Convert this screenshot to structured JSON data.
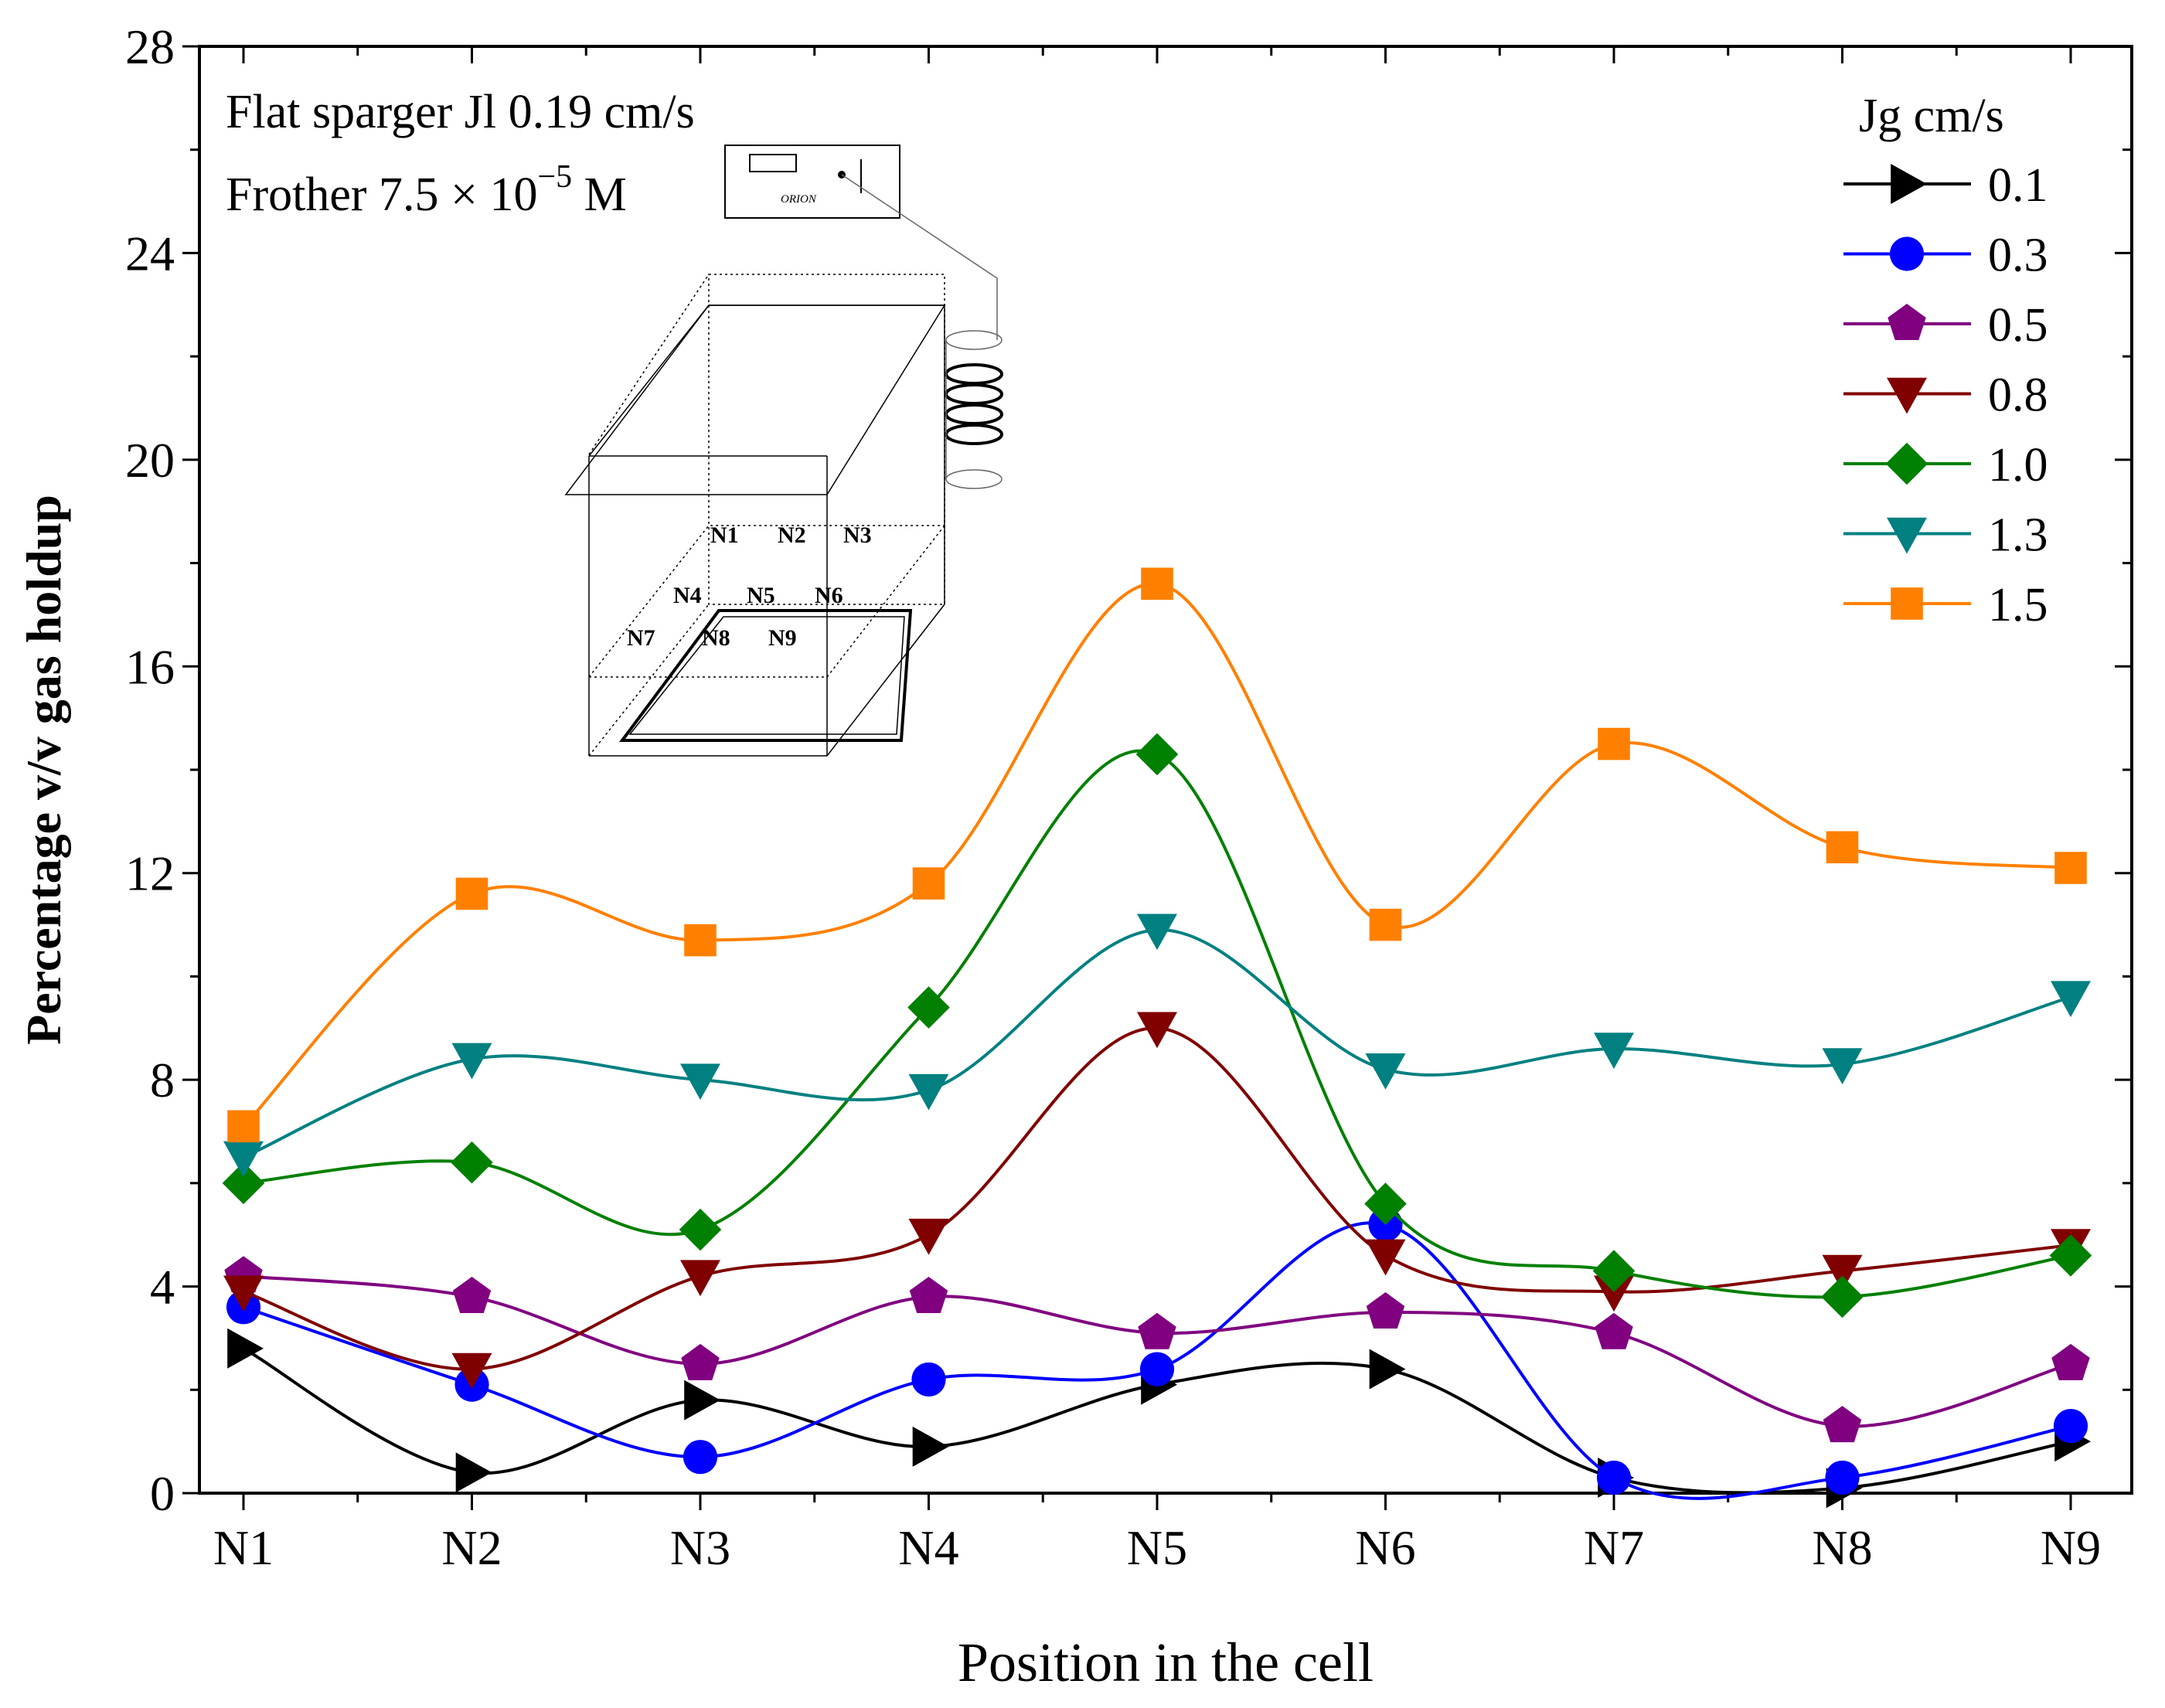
{
  "chart_data": {
    "type": "line",
    "title": "",
    "xlabel": "Position in the cell",
    "ylabel": "Percentage v/v gas holdup",
    "ylim": [
      0,
      28
    ],
    "yticks": [
      "0",
      "4",
      "8",
      "12",
      "16",
      "20",
      "24",
      "28"
    ],
    "categories": [
      "N1",
      "N2",
      "N3",
      "N4",
      "N5",
      "N6",
      "N7",
      "N8",
      "N9"
    ],
    "annotations": {
      "line1": "Flat sparger Jl 0.19 cm/s",
      "line2_prefix": "Frother 7.5 × 10",
      "line2_exp": "−5",
      "line2_suffix": " M"
    },
    "legend": {
      "title": "Jg cm/s",
      "position": "top-right"
    },
    "inset": {
      "device_label": "ORION",
      "positions": [
        "N1",
        "N2",
        "N3",
        "N4",
        "N5",
        "N6",
        "N7",
        "N8",
        "N9"
      ]
    },
    "series": [
      {
        "name": "0.1",
        "color": "#000000",
        "marker": "triangle-right",
        "values": [
          2.8,
          0.4,
          1.8,
          0.9,
          2.1,
          2.4,
          0.3,
          0.1,
          1.0
        ]
      },
      {
        "name": "0.3",
        "color": "#0000ff",
        "marker": "circle",
        "values": [
          3.6,
          2.1,
          0.7,
          2.2,
          2.4,
          5.2,
          0.3,
          0.3,
          1.3
        ]
      },
      {
        "name": "0.5",
        "color": "#800080",
        "marker": "pentagon",
        "values": [
          4.2,
          3.8,
          2.5,
          3.8,
          3.1,
          3.5,
          3.1,
          1.3,
          2.5
        ]
      },
      {
        "name": "0.8",
        "color": "#800000",
        "marker": "triangle-down",
        "values": [
          3.9,
          2.4,
          4.2,
          5.0,
          9.0,
          4.6,
          3.9,
          4.3,
          4.8
        ]
      },
      {
        "name": "1.0",
        "color": "#008000",
        "marker": "diamond",
        "values": [
          6.0,
          6.4,
          5.1,
          9.4,
          14.3,
          5.6,
          4.3,
          3.8,
          4.6
        ]
      },
      {
        "name": "1.3",
        "color": "#008080",
        "marker": "triangle-down",
        "values": [
          6.5,
          8.4,
          8.0,
          7.8,
          10.9,
          8.2,
          8.6,
          8.3,
          9.6
        ]
      },
      {
        "name": "1.5",
        "color": "#ff8000",
        "marker": "square",
        "values": [
          7.1,
          11.6,
          10.7,
          11.8,
          17.6,
          11.0,
          14.5,
          12.5,
          12.1
        ]
      }
    ]
  }
}
